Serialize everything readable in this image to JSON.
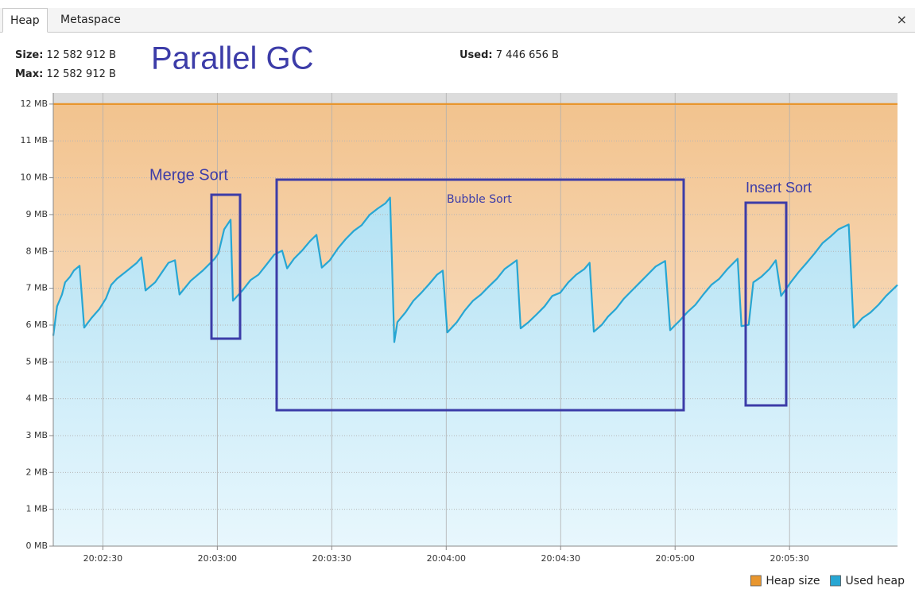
{
  "tabs": [
    "Heap",
    "Metaspace"
  ],
  "close": "×",
  "info": {
    "size_label": "Size:",
    "size": "12 582 912 B",
    "max_label": "Max:",
    "max": "12 582 912 B",
    "used_label": "Used:",
    "used": "7 446 656 B"
  },
  "chart_data": {
    "type": "area",
    "annotations": [
      "Parallel GC",
      "Merge Sort",
      "Bubble Sort",
      "Insert Sort"
    ],
    "xlim": [
      72137,
      72358.3
    ],
    "xticks": [
      {
        "value": 72150,
        "label": "20:02:30"
      },
      {
        "value": 72180,
        "label": "20:03:00"
      },
      {
        "value": 72210,
        "label": "20:03:30"
      },
      {
        "value": 72240,
        "label": "20:04:00"
      },
      {
        "value": 72270,
        "label": "20:04:30"
      },
      {
        "value": 72300,
        "label": "20:05:00"
      },
      {
        "value": 72330,
        "label": "20:05:30"
      }
    ],
    "ylim": [
      0,
      12.3
    ],
    "yticks": [
      {
        "value": 0,
        "label": "0 MB"
      },
      {
        "value": 1,
        "label": "1 MB"
      },
      {
        "value": 2,
        "label": "2 MB"
      },
      {
        "value": 3,
        "label": "3 MB"
      },
      {
        "value": 4,
        "label": "4 MB"
      },
      {
        "value": 5,
        "label": "5 MB"
      },
      {
        "value": 6,
        "label": "6 MB"
      },
      {
        "value": 7,
        "label": "7 MB"
      },
      {
        "value": 8,
        "label": "8 MB"
      },
      {
        "value": 9,
        "label": "9 MB"
      },
      {
        "value": 10,
        "label": "10 MB"
      },
      {
        "value": 11,
        "label": "11 MB"
      },
      {
        "value": 12,
        "label": "12 MB"
      }
    ],
    "grid": true,
    "legend": "bottom-right",
    "series": [
      {
        "name": "Heap size",
        "color": "#e8962e",
        "x": [
          72137,
          72358.3
        ],
        "values": [
          12,
          12
        ]
      },
      {
        "name": "Used heap",
        "color": "#27a6d3",
        "x": [
          72137,
          72138,
          72139.3,
          72140.1,
          72141.4,
          72142.4,
          72143.9,
          72145.1,
          72147,
          72149.1,
          72150.8,
          72152.2,
          72153.7,
          72156.4,
          72158.9,
          72160.1,
          72161.2,
          72163.7,
          72165.8,
          72167.2,
          72168.9,
          72170.1,
          72173,
          72176.2,
          72179.3,
          72180.3,
          72181.8,
          72183.5,
          72184.1,
          72186.6,
          72188.7,
          72190.8,
          72192.8,
          72194.9,
          72197,
          72198.3,
          72200.1,
          72202.2,
          72204.3,
          72206,
          72207.4,
          72209.5,
          72211.6,
          72213.7,
          72215.8,
          72217.8,
          72219.9,
          72222,
          72224.1,
          72225.3,
          72226.4,
          72227.2,
          72229.3,
          72231.4,
          72233.5,
          72235.5,
          72237.6,
          72239.1,
          72240.3,
          72242.8,
          72244.9,
          72247,
          72249.1,
          72251.2,
          72253.3,
          72255.3,
          72258.5,
          72259.5,
          72261.6,
          72263.7,
          72265.8,
          72267.8,
          72269.9,
          72272,
          72274.1,
          72276.2,
          72277.6,
          72278.7,
          72280.8,
          72282.4,
          72284.5,
          72286.6,
          72288.7,
          72290.8,
          72292.8,
          72294.9,
          72297.4,
          72298.7,
          72301.2,
          72303.3,
          72305.3,
          72307.4,
          72309.5,
          72311.6,
          72313.7,
          72316.4,
          72317.4,
          72319.3,
          72320.5,
          72322.6,
          72324.7,
          72326.4,
          72327.8,
          72330.3,
          72332.4,
          72334.5,
          72336.6,
          72338.7,
          72340.8,
          72342.8,
          72345.5,
          72346.8,
          72349.1,
          72351.2,
          72353.3,
          72355.3,
          72358.3
        ],
        "values": [
          5.71,
          6.51,
          6.83,
          7.16,
          7.31,
          7.48,
          7.61,
          5.93,
          6.19,
          6.44,
          6.72,
          7.09,
          7.26,
          7.48,
          7.69,
          7.84,
          6.94,
          7.16,
          7.48,
          7.69,
          7.76,
          6.83,
          7.2,
          7.48,
          7.8,
          7.95,
          8.6,
          8.86,
          6.66,
          6.94,
          7.22,
          7.37,
          7.63,
          7.91,
          8.02,
          7.54,
          7.8,
          8.02,
          8.28,
          8.45,
          7.56,
          7.76,
          8.08,
          8.34,
          8.56,
          8.71,
          8.99,
          9.16,
          9.31,
          9.46,
          5.54,
          6.08,
          6.34,
          6.66,
          6.88,
          7.11,
          7.37,
          7.48,
          5.8,
          6.08,
          6.4,
          6.66,
          6.83,
          7.05,
          7.26,
          7.52,
          7.76,
          5.91,
          6.08,
          6.29,
          6.51,
          6.79,
          6.88,
          7.16,
          7.37,
          7.52,
          7.69,
          5.82,
          6.01,
          6.23,
          6.44,
          6.72,
          6.94,
          7.16,
          7.37,
          7.59,
          7.74,
          5.86,
          6.12,
          6.36,
          6.55,
          6.83,
          7.09,
          7.26,
          7.52,
          7.8,
          5.97,
          6.01,
          7.16,
          7.31,
          7.52,
          7.76,
          6.79,
          7.16,
          7.44,
          7.69,
          7.95,
          8.23,
          8.41,
          8.6,
          8.73,
          5.93,
          6.19,
          6.34,
          6.55,
          6.79,
          7.09
        ]
      }
    ]
  }
}
